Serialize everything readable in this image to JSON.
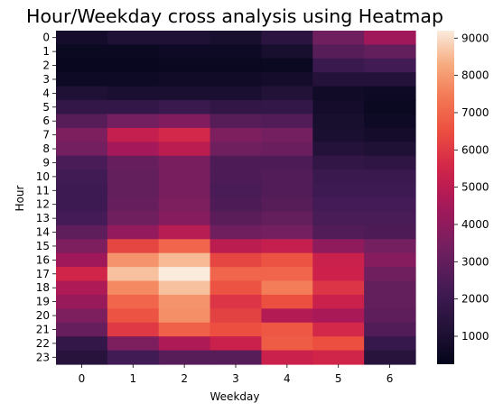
{
  "chart_data": {
    "type": "heatmap",
    "title": "Hour/Weekday cross analysis using Heatmap",
    "xlabel": "Weekday",
    "ylabel": "Hour",
    "x_categories": [
      "0",
      "1",
      "2",
      "3",
      "4",
      "5",
      "6"
    ],
    "y_categories": [
      "0",
      "1",
      "2",
      "3",
      "4",
      "5",
      "6",
      "7",
      "8",
      "9",
      "10",
      "11",
      "12",
      "13",
      "14",
      "15",
      "16",
      "17",
      "18",
      "19",
      "20",
      "21",
      "22",
      "23"
    ],
    "colorbar": {
      "min": 250,
      "max": 9200,
      "ticks": [
        1000,
        2000,
        3000,
        4000,
        5000,
        6000,
        7000,
        8000,
        9000
      ],
      "colormap": "rocket"
    },
    "values": [
      [
        800,
        1100,
        1100,
        900,
        1500,
        3300,
        4400
      ],
      [
        500,
        500,
        600,
        600,
        900,
        2700,
        3000
      ],
      [
        400,
        400,
        450,
        450,
        500,
        2000,
        2200
      ],
      [
        600,
        600,
        700,
        700,
        800,
        1300,
        1300
      ],
      [
        1100,
        1000,
        1000,
        1000,
        1200,
        700,
        600
      ],
      [
        1800,
        1800,
        2000,
        1700,
        1800,
        800,
        500
      ],
      [
        2700,
        3400,
        3700,
        2700,
        2600,
        900,
        600
      ],
      [
        3600,
        5200,
        5600,
        3600,
        3400,
        1000,
        800
      ],
      [
        3400,
        4500,
        5000,
        3300,
        3200,
        1300,
        1100
      ],
      [
        2400,
        3100,
        3500,
        2500,
        2500,
        1700,
        1600
      ],
      [
        2200,
        3000,
        3500,
        2500,
        2600,
        2000,
        2000
      ],
      [
        2100,
        3000,
        3500,
        2400,
        2600,
        2100,
        2100
      ],
      [
        2100,
        3100,
        3600,
        2500,
        2700,
        2300,
        2300
      ],
      [
        2300,
        3300,
        3800,
        2800,
        3000,
        2400,
        2400
      ],
      [
        2900,
        4100,
        4900,
        3300,
        3400,
        2600,
        2500
      ],
      [
        3600,
        6300,
        7000,
        5000,
        5200,
        4000,
        3400
      ],
      [
        4400,
        7900,
        8500,
        6300,
        6600,
        5300,
        3800
      ],
      [
        5500,
        8600,
        9200,
        7000,
        7000,
        5400,
        3300
      ],
      [
        4700,
        7700,
        8600,
        6600,
        7500,
        5900,
        3000
      ],
      [
        4200,
        7000,
        7900,
        5900,
        6500,
        5300,
        3000
      ],
      [
        3600,
        6600,
        7800,
        6200,
        4800,
        4600,
        2900
      ],
      [
        3100,
        6000,
        6900,
        6500,
        6700,
        5600,
        2600
      ],
      [
        1800,
        3600,
        4700,
        5300,
        6800,
        6500,
        1900
      ],
      [
        1400,
        2200,
        2700,
        2700,
        5300,
        5500,
        1400
      ]
    ]
  }
}
